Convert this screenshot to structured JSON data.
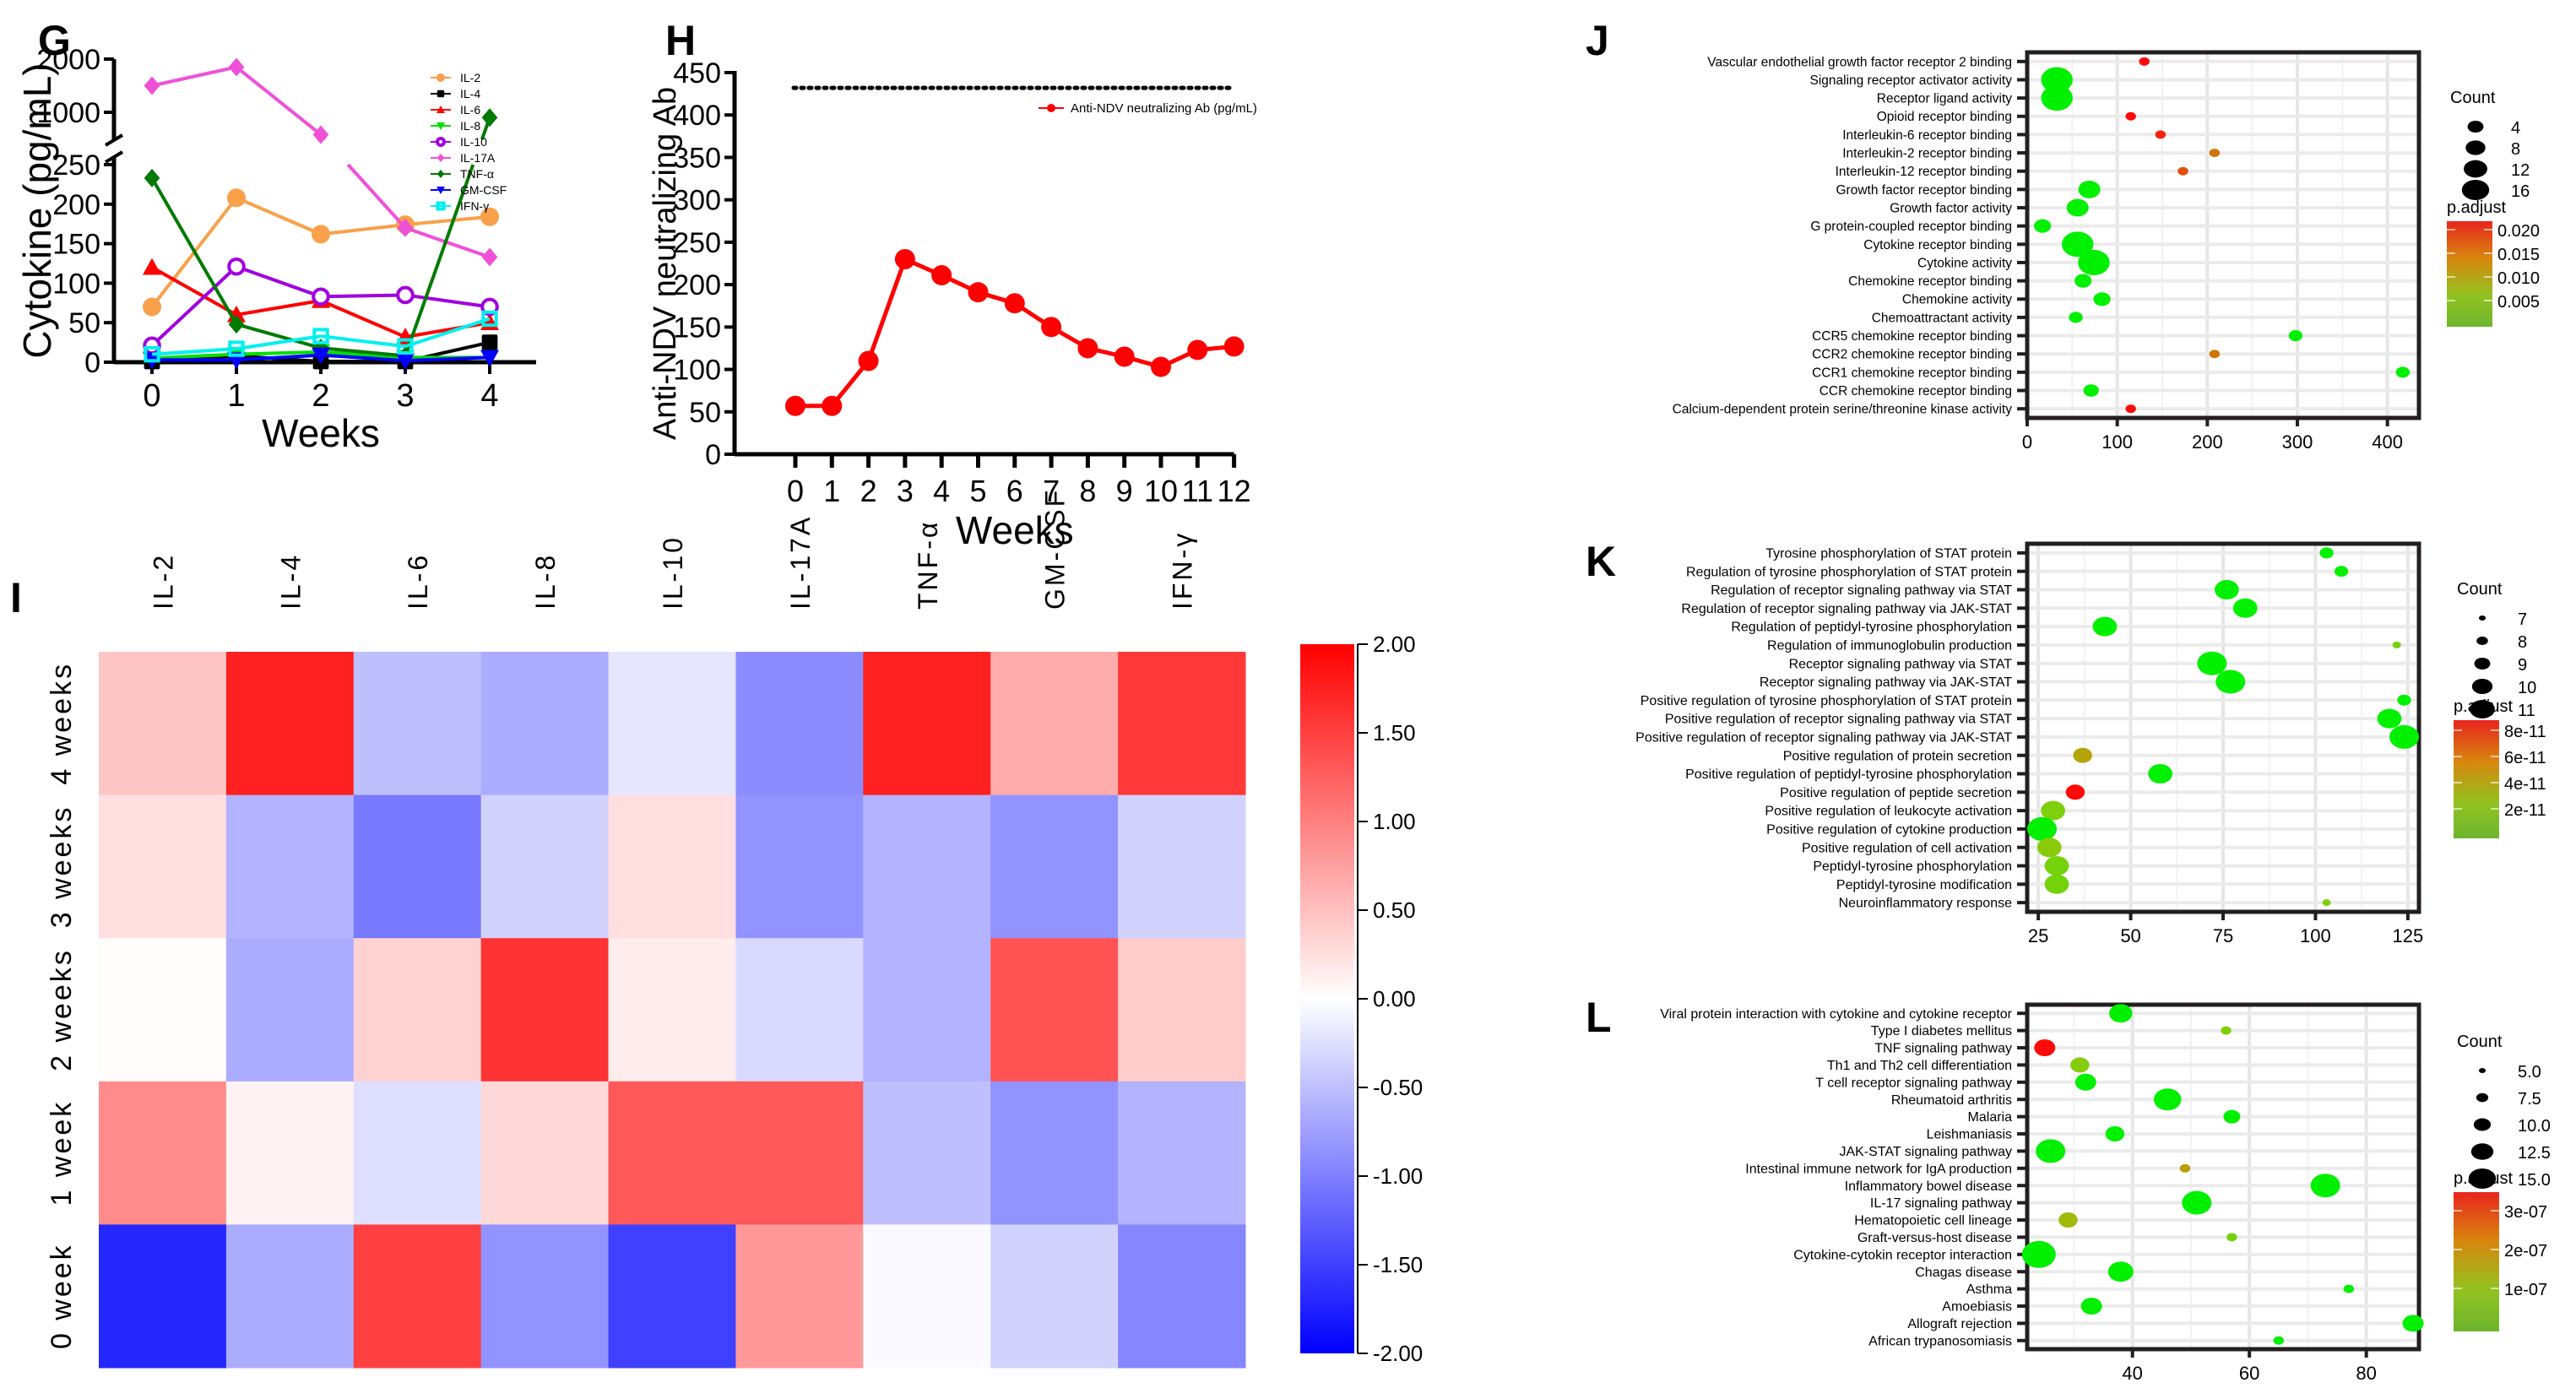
{
  "chart_data": [
    {
      "id": "G",
      "type": "line",
      "panel_label": "G",
      "xlabel": "Weeks",
      "ylabel": "Cytokine (pg/mL)",
      "x": [
        0,
        1,
        2,
        3,
        4
      ],
      "x_ticks": [
        "0",
        "1",
        "2",
        "3",
        "4"
      ],
      "y_axis_break": {
        "lower_range": [
          0,
          250
        ],
        "upper_range": [
          500,
          2000
        ]
      },
      "y_ticks_lower": [
        "0",
        "50",
        "100",
        "150",
        "200",
        "250"
      ],
      "y_ticks_upper": [
        "1000",
        "2000"
      ],
      "legend_position": "top-right",
      "series": [
        {
          "name": "IL-2",
          "color": "#f9a04a",
          "marker": "circle",
          "values": [
            70,
            208,
            162,
            174,
            184
          ]
        },
        {
          "name": "IL-4",
          "color": "#000000",
          "marker": "square",
          "values": [
            1,
            8,
            1,
            1,
            25
          ]
        },
        {
          "name": "IL-6",
          "color": "#ff0000",
          "marker": "triangle-up",
          "values": [
            120,
            60,
            78,
            32,
            50
          ]
        },
        {
          "name": "IL-8",
          "color": "#00e000",
          "marker": "triangle-down",
          "values": [
            5,
            10,
            13,
            6,
            6
          ]
        },
        {
          "name": "IL-10",
          "color": "#a000e0",
          "marker": "circle-open",
          "values": [
            21,
            121,
            83,
            85,
            70
          ]
        },
        {
          "name": "IL-17A",
          "color": "#f050d8",
          "marker": "diamond",
          "values": [
            1500,
            1850,
            580,
            170,
            133
          ]
        },
        {
          "name": "TNF-α",
          "color": "#007a00",
          "marker": "diamond",
          "values": [
            233,
            48,
            18,
            8,
            900
          ]
        },
        {
          "name": "GM-CSF",
          "color": "#0000ff",
          "marker": "triangle-down",
          "values": [
            3,
            3,
            9,
            2,
            6
          ]
        },
        {
          "name": "IFN-γ",
          "color": "#00f0f0",
          "marker": "square-open",
          "values": [
            10,
            17,
            33,
            20,
            55
          ]
        }
      ]
    },
    {
      "id": "H",
      "type": "line",
      "panel_label": "H",
      "xlabel": "Weeks",
      "ylabel": "Anti-NDV neutralizing Ab",
      "x": [
        0,
        1,
        2,
        3,
        4,
        5,
        6,
        7,
        8,
        9,
        10,
        11,
        12
      ],
      "x_ticks": [
        "0",
        "1",
        "2",
        "3",
        "4",
        "5",
        "6",
        "7",
        "8",
        "9",
        "10",
        "11",
        "12"
      ],
      "y_ticks": [
        "0",
        "50",
        "100",
        "150",
        "200",
        "250",
        "300",
        "350",
        "400",
        "450"
      ],
      "ylim": [
        0,
        450
      ],
      "reference_line": {
        "value": 432,
        "style": "dotted"
      },
      "legend_position": "top-right",
      "series": [
        {
          "name": "Anti-NDV neutralizing Ab (pg/mL)",
          "color": "#ff0000",
          "values": [
            57,
            57,
            110,
            230,
            211,
            191,
            178,
            150,
            125,
            115,
            103,
            123,
            127
          ]
        }
      ]
    },
    {
      "id": "I",
      "type": "heatmap",
      "panel_label": "I",
      "columns": [
        "IL-2",
        "IL-4",
        "IL-6",
        "IL-8",
        "IL-10",
        "IL-17A",
        "TNF-α",
        "GM-CSF",
        "IFN-γ"
      ],
      "rows": [
        "4 weeks",
        "3 weeks",
        "2 weeks",
        "1 week",
        "0 week"
      ],
      "values": [
        [
          0.45,
          1.75,
          -0.5,
          -0.65,
          -0.2,
          -0.9,
          1.75,
          0.65,
          1.55
        ],
        [
          0.25,
          -0.6,
          -1.05,
          -0.35,
          0.25,
          -0.85,
          -0.6,
          -0.85,
          -0.35
        ],
        [
          0.02,
          -0.65,
          0.35,
          1.6,
          0.15,
          -0.3,
          -0.6,
          1.35,
          0.4
        ],
        [
          0.9,
          0.1,
          -0.25,
          0.3,
          1.3,
          1.3,
          -0.5,
          -0.85,
          -0.6
        ],
        [
          -1.7,
          -0.65,
          1.5,
          -0.85,
          -1.5,
          0.8,
          -0.05,
          -0.35,
          -0.95
        ]
      ],
      "colorbar": {
        "min": -2,
        "max": 2,
        "low_color": "#0000ff",
        "mid_color": "#ffffff",
        "high_color": "#ff0000",
        "ticks": [
          "2.00",
          "1.50",
          "1.00",
          "0.50",
          "0.00",
          "-0.50",
          "-1.00",
          "-1.50",
          "-2.00"
        ]
      }
    },
    {
      "id": "J",
      "type": "scatter",
      "panel_label": "J",
      "xlim": [
        0,
        435
      ],
      "x_ticks": [
        0,
        100,
        200,
        300,
        400
      ],
      "size_legend": {
        "title": "Count",
        "values": [
          "4",
          "8",
          "12",
          "16"
        ]
      },
      "color_legend": {
        "title": "p.adjust",
        "ticks": [
          "0.020",
          "0.015",
          "0.010",
          "0.005"
        ],
        "min": 0,
        "max": 0.021
      },
      "terms": [
        {
          "label": "Vascular endothelial growth factor receptor 2 binding",
          "x": 130,
          "count": 3,
          "p": 0.021
        },
        {
          "label": "Signaling receptor activator activity",
          "x": 33,
          "count": 16,
          "p": 0.0001
        },
        {
          "label": "Receptor ligand activity",
          "x": 33,
          "count": 16,
          "p": 0.0001
        },
        {
          "label": "Opioid receptor binding",
          "x": 115,
          "count": 3,
          "p": 0.021
        },
        {
          "label": "Interleukin-6 receptor binding",
          "x": 148,
          "count": 3,
          "p": 0.02
        },
        {
          "label": "Interleukin-2 receptor binding",
          "x": 208,
          "count": 3,
          "p": 0.016
        },
        {
          "label": "Interleukin-12 receptor binding",
          "x": 173,
          "count": 3,
          "p": 0.018
        },
        {
          "label": "Growth factor receptor binding",
          "x": 69,
          "count": 10,
          "p": 0.0001
        },
        {
          "label": "Growth factor activity",
          "x": 56,
          "count": 10,
          "p": 0.0001
        },
        {
          "label": "G protein-coupled receptor binding",
          "x": 17,
          "count": 7,
          "p": 0.0001
        },
        {
          "label": "Cytokine receptor binding",
          "x": 56,
          "count": 16,
          "p": 0.0001
        },
        {
          "label": "Cytokine activity",
          "x": 74,
          "count": 16,
          "p": 0.0001
        },
        {
          "label": "Chemokine receptor binding",
          "x": 62,
          "count": 7,
          "p": 0.0001
        },
        {
          "label": "Chemokine activity",
          "x": 83,
          "count": 7,
          "p": 0.0001
        },
        {
          "label": "Chemoattractant activity",
          "x": 54,
          "count": 5,
          "p": 0.004
        },
        {
          "label": "CCR5 chemokine receptor binding",
          "x": 298,
          "count": 5,
          "p": 0.0001
        },
        {
          "label": "CCR2 chemokine receptor binding",
          "x": 208,
          "count": 3,
          "p": 0.016
        },
        {
          "label": "CCR1 chemokine receptor binding",
          "x": 417,
          "count": 5,
          "p": 0.0001
        },
        {
          "label": "CCR chemokine receptor binding",
          "x": 71,
          "count": 6,
          "p": 0.0001
        },
        {
          "label": "Calcium-dependent protein serine/threonine kinase activity",
          "x": 115,
          "count": 3,
          "p": 0.021
        }
      ]
    },
    {
      "id": "K",
      "type": "scatter",
      "panel_label": "K",
      "xlim": [
        22,
        128
      ],
      "x_ticks": [
        25,
        50,
        75,
        100,
        125
      ],
      "size_legend": {
        "title": "Count",
        "values": [
          "7",
          "8",
          "9",
          "10",
          "11"
        ]
      },
      "color_legend": {
        "title": "p.adjust",
        "ticks": [
          "8e-11",
          "6e-11",
          "4e-11",
          "2e-11"
        ],
        "min": 0,
        "max": 9e-11
      },
      "terms": [
        {
          "label": "Tyrosine phosphorylation of STAT protein",
          "x": 103,
          "count": 8,
          "p": 1e-12
        },
        {
          "label": "Regulation of tyrosine phosphorylation of STAT protein",
          "x": 107,
          "count": 8,
          "p": 1e-12
        },
        {
          "label": "Regulation of receptor signaling pathway via STAT",
          "x": 76,
          "count": 10,
          "p": 1e-12
        },
        {
          "label": "Regulation of receptor signaling pathway via JAK-STAT",
          "x": 81,
          "count": 10,
          "p": 1e-12
        },
        {
          "label": "Regulation of peptidyl-tyrosine phosphorylation",
          "x": 43,
          "count": 10,
          "p": 1e-12
        },
        {
          "label": "Regulation of immunoglobulin production",
          "x": 122,
          "count": 7,
          "p": 2.5e-11
        },
        {
          "label": "Receptor signaling pathway via STAT",
          "x": 72,
          "count": 11,
          "p": 1e-12
        },
        {
          "label": "Receptor signaling pathway via JAK-STAT",
          "x": 77,
          "count": 11,
          "p": 1e-12
        },
        {
          "label": "Positive regulation of tyrosine phosphorylation of STAT protein",
          "x": 124,
          "count": 8,
          "p": 1e-12
        },
        {
          "label": "Positive regulation of receptor signaling pathway via STAT",
          "x": 120,
          "count": 10,
          "p": 1e-12
        },
        {
          "label": "Positive regulation of receptor signaling pathway via JAK-STAT",
          "x": 124,
          "count": 11,
          "p": 1e-12
        },
        {
          "label": "Positive regulation of protein secretion",
          "x": 37,
          "count": 9,
          "p": 5.5e-11
        },
        {
          "label": "Positive regulation of peptidyl-tyrosine phosphorylation",
          "x": 58,
          "count": 10,
          "p": 1e-12
        },
        {
          "label": "Positive regulation of peptide secretion",
          "x": 35,
          "count": 9,
          "p": 9e-11
        },
        {
          "label": "Positive regulation of leukocyte activation",
          "x": 29,
          "count": 10,
          "p": 3e-11
        },
        {
          "label": "Positive regulation of cytokine production",
          "x": 26,
          "count": 11,
          "p": 1.5e-11
        },
        {
          "label": "Positive regulation of cell activation",
          "x": 28,
          "count": 10,
          "p": 3.5e-11
        },
        {
          "label": "Peptidyl-tyrosine phosphorylation",
          "x": 30,
          "count": 10,
          "p": 2.5e-11
        },
        {
          "label": "Peptidyl-tyrosine modification",
          "x": 30,
          "count": 10,
          "p": 2.5e-11
        },
        {
          "label": "Neuroinflammatory response",
          "x": 103,
          "count": 7,
          "p": 3e-11
        }
      ]
    },
    {
      "id": "L",
      "type": "scatter",
      "panel_label": "L",
      "xlim": [
        22,
        89
      ],
      "x_ticks": [
        40,
        60,
        80
      ],
      "size_legend": {
        "title": "Count",
        "values": [
          "5.0",
          "7.5",
          "10.0",
          "12.5",
          "15.0"
        ]
      },
      "color_legend": {
        "title": "p.adjust",
        "ticks": [
          "3e-07",
          "2e-07",
          "1e-07"
        ],
        "min": 0,
        "max": 3.5e-07
      },
      "terms": [
        {
          "label": "Viral protein interaction with cytokine and cytokine receptor",
          "x": 38,
          "count": 11,
          "p": 1e-09
        },
        {
          "label": "Type I diabetes mellitus",
          "x": 56,
          "count": 5,
          "p": 1.2e-07
        },
        {
          "label": "TNF signaling pathway",
          "x": 25,
          "count": 10,
          "p": 3.5e-07
        },
        {
          "label": "Th1 and Th2 cell differentiation",
          "x": 31,
          "count": 9,
          "p": 1.3e-07
        },
        {
          "label": "T cell receptor signaling pathway",
          "x": 32,
          "count": 10,
          "p": 3e-08
        },
        {
          "label": "Rheumatoid arthritis",
          "x": 46,
          "count": 13,
          "p": 1e-09
        },
        {
          "label": "Malaria",
          "x": 57,
          "count": 8,
          "p": 1e-09
        },
        {
          "label": "Leishmaniasis",
          "x": 37,
          "count": 9,
          "p": 6e-08
        },
        {
          "label": "JAK-STAT signaling pathway",
          "x": 26,
          "count": 14,
          "p": 1e-09
        },
        {
          "label": "Intestinal immune network for IgA production",
          "x": 49,
          "count": 5,
          "p": 2.2e-07
        },
        {
          "label": "Inflammatory bowel disease",
          "x": 73,
          "count": 14,
          "p": 1e-09
        },
        {
          "label": "IL-17 signaling pathway",
          "x": 51,
          "count": 14,
          "p": 1e-09
        },
        {
          "label": "Hematopoietic cell lineage",
          "x": 29,
          "count": 9,
          "p": 1.8e-07
        },
        {
          "label": "Graft-versus-host disease",
          "x": 57,
          "count": 5,
          "p": 1e-07
        },
        {
          "label": "Cytokine-cytokin receptor interaction",
          "x": 24,
          "count": 16,
          "p": 1e-09
        },
        {
          "label": "Chagas disease",
          "x": 38,
          "count": 12,
          "p": 1e-09
        },
        {
          "label": "Asthma",
          "x": 77,
          "count": 5,
          "p": 3e-08
        },
        {
          "label": "Amoebiasis",
          "x": 33,
          "count": 10,
          "p": 2e-08
        },
        {
          "label": "Allograft rejection",
          "x": 88,
          "count": 10,
          "p": 1e-09
        },
        {
          "label": "African trypanosomiasis",
          "x": 65,
          "count": 5,
          "p": 5e-08
        }
      ]
    }
  ]
}
